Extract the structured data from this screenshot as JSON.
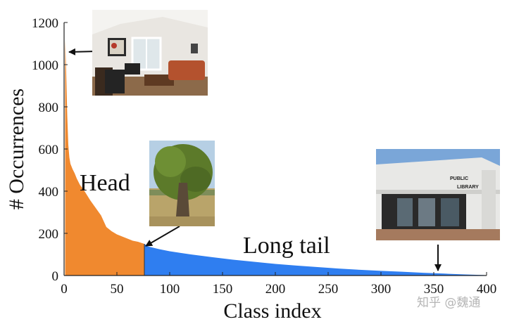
{
  "chart_data": {
    "type": "area",
    "xlabel": "Class index",
    "ylabel": "# Occurrences",
    "xlim": [
      0,
      400
    ],
    "ylim": [
      0,
      1200
    ],
    "xticks": [
      0,
      50,
      100,
      150,
      200,
      250,
      300,
      350,
      400
    ],
    "yticks": [
      0,
      200,
      400,
      600,
      800,
      1000,
      1200
    ],
    "grid": false,
    "head_tail_split": 76,
    "series": [
      {
        "name": "Head",
        "color": "#f0892f",
        "x": [
          1,
          2,
          3,
          4,
          5,
          6,
          8,
          10,
          12,
          15,
          18,
          20,
          25,
          30,
          35,
          40,
          45,
          50,
          55,
          60,
          65,
          70,
          76
        ],
        "values": [
          1120,
          960,
          760,
          620,
          560,
          530,
          505,
          485,
          460,
          430,
          410,
          395,
          355,
          320,
          285,
          230,
          210,
          195,
          185,
          175,
          165,
          160,
          150
        ]
      },
      {
        "name": "Long tail",
        "color": "#2f7ef0",
        "x": [
          76,
          80,
          90,
          100,
          120,
          140,
          160,
          180,
          200,
          220,
          240,
          260,
          280,
          300,
          320,
          340,
          360,
          380,
          398
        ],
        "values": [
          150,
          137,
          125,
          115,
          100,
          87,
          75,
          65,
          55,
          47,
          40,
          33,
          27,
          22,
          18,
          13,
          9,
          5,
          2
        ]
      }
    ],
    "annotations": [
      {
        "text": "Head",
        "picture": "living-room-photo",
        "points_to_x": 2,
        "points_to_y": 1060
      },
      {
        "picture": "tree-photo",
        "points_to_x": 76,
        "points_to_y": 150
      },
      {
        "text": "Long tail",
        "picture": "library-photo",
        "points_to_x": 354,
        "points_to_y": 10
      }
    ]
  },
  "pictures": {
    "living_room": {
      "library_sign": ""
    },
    "library": {
      "sign_line1": "PUBLIC",
      "sign_line2": "LIBRARY"
    }
  },
  "watermark": "知乎 @魏通"
}
